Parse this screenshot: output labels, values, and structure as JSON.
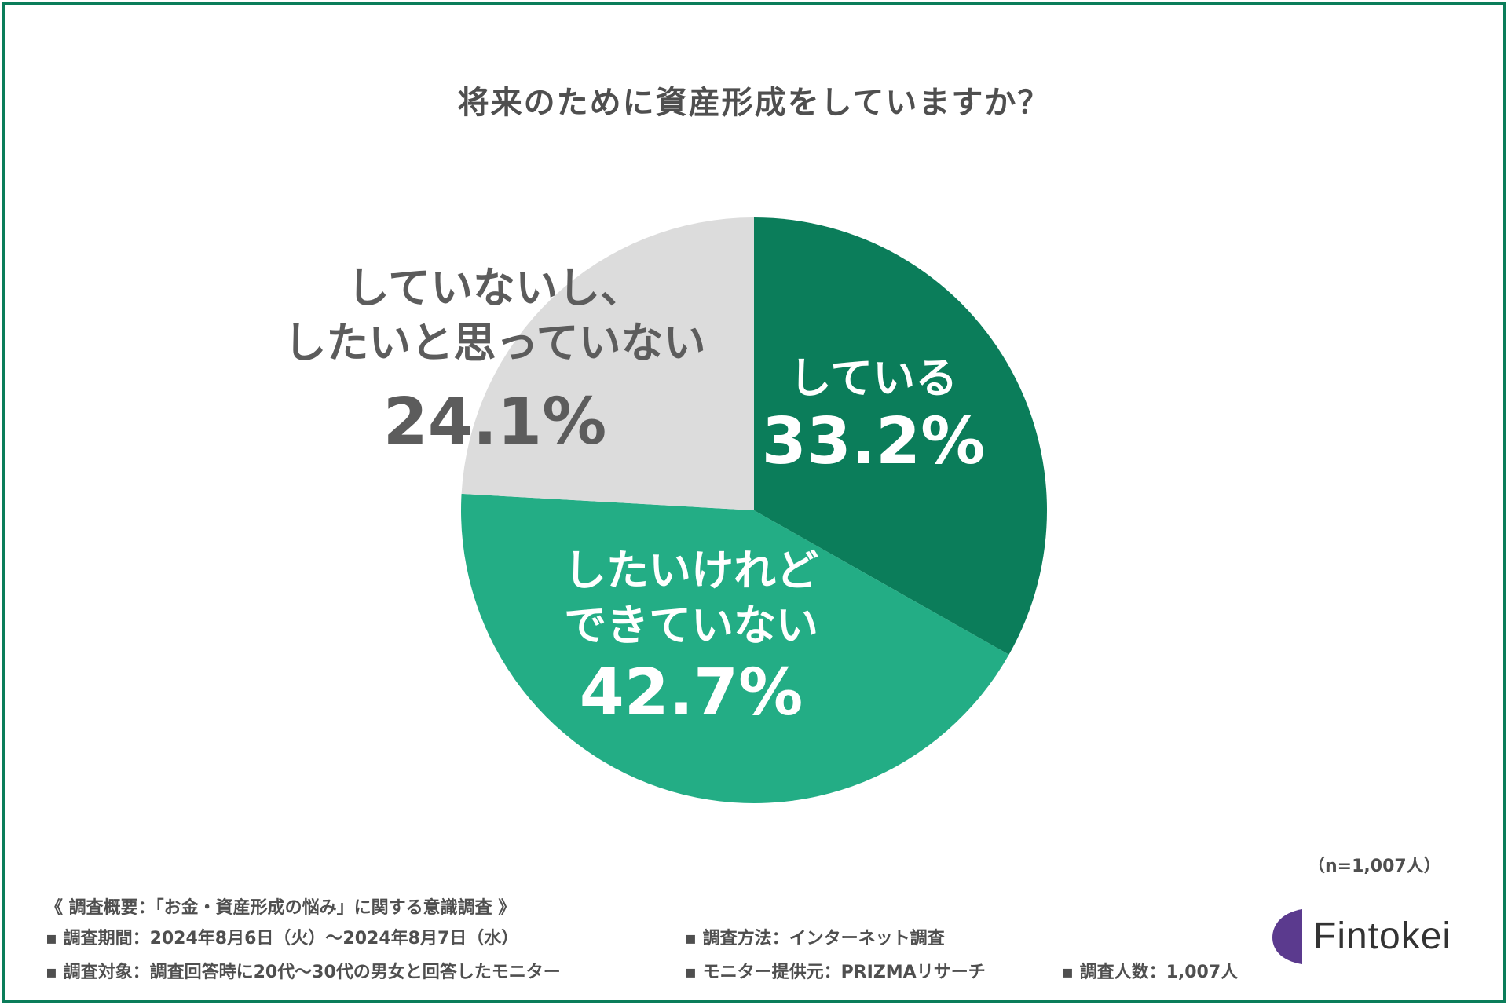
{
  "title": "将来のために資産形成をしていますか？",
  "sample_size": "（n=1,007人）",
  "chart_data": {
    "type": "pie",
    "title": "将来のために資産形成をしていますか？",
    "unit": "%",
    "slices": [
      {
        "label": [
          "している"
        ],
        "value": 33.2,
        "display": "33.2%",
        "color": "#0b7d5a",
        "text_color": "#ffffff"
      },
      {
        "label": [
          "したいけれど",
          "できていない"
        ],
        "value": 42.7,
        "display": "42.7%",
        "color": "#23ad85",
        "text_color": "#ffffff"
      },
      {
        "label": [
          "していないし、",
          "したいと思っていない"
        ],
        "value": 24.1,
        "display": "24.1%",
        "color": "#dcdcdc",
        "text_color": "#5c5c5c"
      }
    ]
  },
  "survey": {
    "header": "《 調査概要：「お金・資産形成の悩み」に関する意識調査 》",
    "period": "▪ 調査期間：2024年8月6日（火）～2024年8月7日（水）",
    "method": "▪ 調査方法：インターネット調査",
    "target": "▪ 調査対象：調査回答時に20代～30代の男女と回答したモニター",
    "provider": "▪ モニター提供元：PRIZMAリサーチ",
    "count": "▪ 調査人数：1,007人"
  },
  "logo": {
    "text": "Fintokei",
    "color": "#5b3a8e"
  }
}
